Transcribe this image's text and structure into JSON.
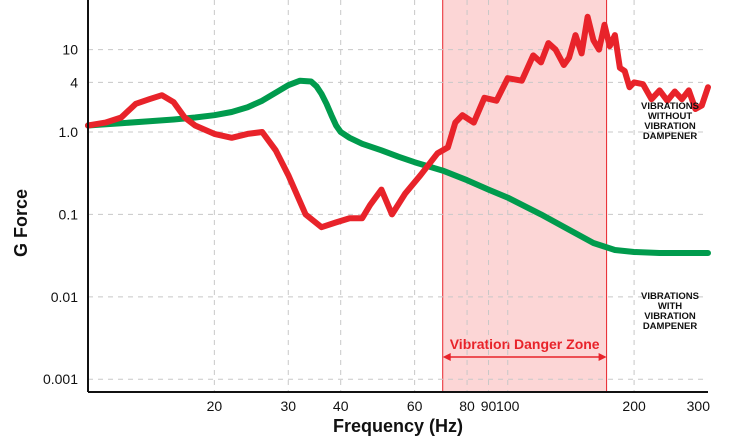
{
  "chart_data": {
    "type": "line",
    "xlabel": "Frequency (Hz)",
    "ylabel": "G Force",
    "x_scale": "log",
    "y_scale": "log",
    "xlim": [
      10,
      300
    ],
    "ylim": [
      0.0007,
      40
    ],
    "x_ticks": [
      {
        "value": 20,
        "label": "20"
      },
      {
        "value": 30,
        "label": "30"
      },
      {
        "value": 40,
        "label": "40"
      },
      {
        "value": 60,
        "label": "60"
      },
      {
        "value": 80,
        "label": "80"
      },
      {
        "value": 90,
        "label": "90"
      },
      {
        "value": 100,
        "label": "100"
      },
      {
        "value": 200,
        "label": "200"
      },
      {
        "value": 300,
        "label": "300"
      }
    ],
    "y_ticks": [
      {
        "value": 10,
        "label": "10"
      },
      {
        "value": 4,
        "label": "4"
      },
      {
        "value": 1,
        "label": "1.0"
      },
      {
        "value": 0.1,
        "label": "0.1"
      },
      {
        "value": 0.01,
        "label": "0.01"
      },
      {
        "value": 0.001,
        "label": "0.001"
      }
    ],
    "grid": "dashed",
    "danger_zone": {
      "label": "Vibration Danger Zone",
      "x_start": 70,
      "x_end": 172,
      "color": "#e8232a",
      "fill": "#fcd6d6"
    },
    "series": [
      {
        "name_lines": [
          "VIBRATIONS",
          "WITHOUT",
          "VIBRATION",
          "DAMPENER"
        ],
        "color": "#e8232a",
        "x": [
          10,
          11,
          12,
          13,
          14,
          15,
          16,
          17,
          18,
          20,
          22,
          24,
          26,
          28,
          30,
          33,
          36,
          39,
          42,
          45,
          47,
          50,
          53,
          57,
          62,
          68,
          72,
          75,
          78,
          83,
          88,
          94,
          100,
          108,
          115,
          120,
          125,
          130,
          136,
          140,
          145,
          150,
          155,
          160,
          165,
          170,
          175,
          180,
          185,
          190,
          195,
          200,
          210,
          220,
          230,
          240,
          250,
          260,
          270,
          280,
          290,
          300
        ],
        "values": [
          1.2,
          1.3,
          1.5,
          2.2,
          2.5,
          2.8,
          2.3,
          1.5,
          1.2,
          0.95,
          0.85,
          0.95,
          1.0,
          0.6,
          0.3,
          0.1,
          0.07,
          0.08,
          0.09,
          0.09,
          0.13,
          0.2,
          0.1,
          0.18,
          0.3,
          0.55,
          0.65,
          1.3,
          1.6,
          1.3,
          2.6,
          2.4,
          4.5,
          4.2,
          8.5,
          7.0,
          12,
          10,
          6.5,
          8.0,
          15,
          9.0,
          25,
          13,
          10,
          20,
          11,
          15,
          6.0,
          5.5,
          3.5,
          4.0,
          3.8,
          2.5,
          3.2,
          2.4,
          3.1,
          2.5,
          3.2,
          1.9,
          2.1,
          3.5
        ]
      },
      {
        "name_lines": [
          "VIBRATIONS",
          "WITH",
          "VIBRATION",
          "DAMPENER"
        ],
        "color": "#009b4d",
        "x": [
          10,
          12,
          14,
          16,
          18,
          20,
          22,
          24,
          26,
          28,
          30,
          32,
          34,
          35,
          36,
          37,
          38,
          39,
          40,
          42,
          45,
          50,
          55,
          60,
          70,
          80,
          90,
          100,
          120,
          140,
          160,
          180,
          200,
          230,
          260,
          300
        ],
        "values": [
          1.2,
          1.28,
          1.35,
          1.42,
          1.5,
          1.6,
          1.75,
          2.0,
          2.4,
          3.0,
          3.7,
          4.2,
          4.1,
          3.6,
          2.9,
          2.2,
          1.6,
          1.2,
          1.0,
          0.85,
          0.72,
          0.6,
          0.5,
          0.43,
          0.34,
          0.26,
          0.2,
          0.16,
          0.1,
          0.065,
          0.045,
          0.037,
          0.035,
          0.034,
          0.034,
          0.034
        ]
      }
    ]
  }
}
